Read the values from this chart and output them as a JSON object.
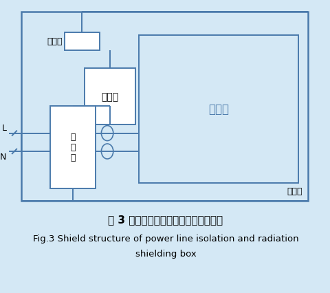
{
  "bg_color": "#d4e8f5",
  "line_color": "#4a7aab",
  "title_cn": "图 3 屏蔽箱电力线隔离和辐射屏蔽结构",
  "title_en1": "Fig.3 Shield structure of power line isolation and radiation",
  "title_en2": "shielding box",
  "label_shepin": "射频口",
  "label_ouhe": "耦合器",
  "label_ceshi": "测试板",
  "label_shielding": "屏蔽箱",
  "label_filter": "滤\n波\n器",
  "label_L": "L",
  "label_N": "N"
}
